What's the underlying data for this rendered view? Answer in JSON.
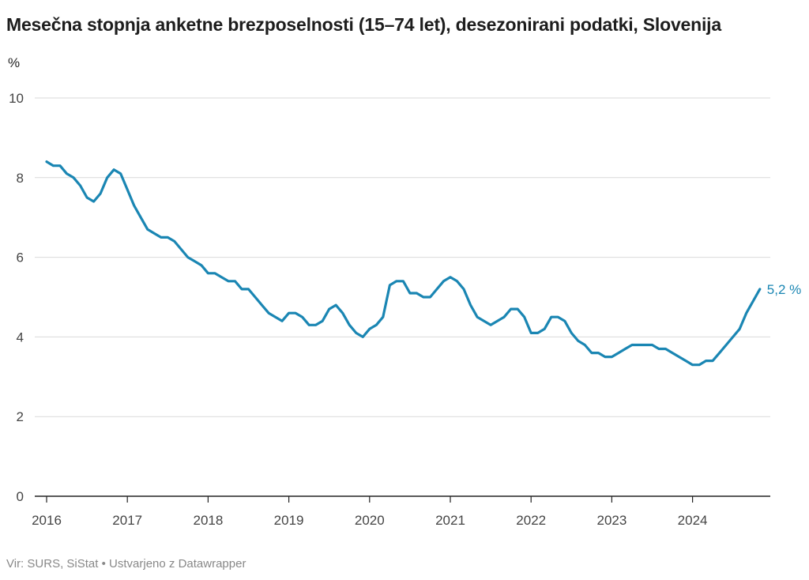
{
  "title": "Mesečna stopnja anketne brezposelnosti (15–74 let), desezonirani podatki, Slovenija",
  "unit_label": "%",
  "footer": {
    "source": "Vir: SURS, SiStat",
    "separator": "•",
    "credit": "Ustvarjeno z Datawrapper"
  },
  "colors": {
    "line": "#1a86b3",
    "grid": "#d9d9d9",
    "axis": "#222222"
  },
  "chart_data": {
    "type": "line",
    "title": "Mesečna stopnja anketne brezposelnosti (15–74 let), desezonirani podatki, Slovenija",
    "xlabel": "",
    "ylabel": "%",
    "ylim": [
      0,
      10
    ],
    "xlim": [
      "2016-01",
      "2024-12"
    ],
    "yticks": [
      0,
      2,
      4,
      6,
      8,
      10
    ],
    "xticks": [
      "2016",
      "2017",
      "2018",
      "2019",
      "2020",
      "2021",
      "2022",
      "2023",
      "2024"
    ],
    "grid": true,
    "end_label": "5,2 %",
    "x": [
      "2016-01",
      "2016-02",
      "2016-03",
      "2016-04",
      "2016-05",
      "2016-06",
      "2016-07",
      "2016-08",
      "2016-09",
      "2016-10",
      "2016-11",
      "2016-12",
      "2017-01",
      "2017-02",
      "2017-03",
      "2017-04",
      "2017-05",
      "2017-06",
      "2017-07",
      "2017-08",
      "2017-09",
      "2017-10",
      "2017-11",
      "2017-12",
      "2018-01",
      "2018-02",
      "2018-03",
      "2018-04",
      "2018-05",
      "2018-06",
      "2018-07",
      "2018-08",
      "2018-09",
      "2018-10",
      "2018-11",
      "2018-12",
      "2019-01",
      "2019-02",
      "2019-03",
      "2019-04",
      "2019-05",
      "2019-06",
      "2019-07",
      "2019-08",
      "2019-09",
      "2019-10",
      "2019-11",
      "2019-12",
      "2020-01",
      "2020-02",
      "2020-03",
      "2020-04",
      "2020-05",
      "2020-06",
      "2020-07",
      "2020-08",
      "2020-09",
      "2020-10",
      "2020-11",
      "2020-12",
      "2021-01",
      "2021-02",
      "2021-03",
      "2021-04",
      "2021-05",
      "2021-06",
      "2021-07",
      "2021-08",
      "2021-09",
      "2021-10",
      "2021-11",
      "2021-12",
      "2022-01",
      "2022-02",
      "2022-03",
      "2022-04",
      "2022-05",
      "2022-06",
      "2022-07",
      "2022-08",
      "2022-09",
      "2022-10",
      "2022-11",
      "2022-12",
      "2023-01",
      "2023-02",
      "2023-03",
      "2023-04",
      "2023-05",
      "2023-06",
      "2023-07",
      "2023-08",
      "2023-09",
      "2023-10",
      "2023-11",
      "2023-12",
      "2024-01",
      "2024-02",
      "2024-03",
      "2024-04",
      "2024-05",
      "2024-06",
      "2024-07",
      "2024-08",
      "2024-09",
      "2024-10",
      "2024-11"
    ],
    "values": [
      8.4,
      8.3,
      8.3,
      8.1,
      8.0,
      7.8,
      7.5,
      7.4,
      7.6,
      8.0,
      8.2,
      8.1,
      7.7,
      7.3,
      7.0,
      6.7,
      6.6,
      6.5,
      6.5,
      6.4,
      6.2,
      6.0,
      5.9,
      5.8,
      5.6,
      5.6,
      5.5,
      5.4,
      5.4,
      5.2,
      5.2,
      5.0,
      4.8,
      4.6,
      4.5,
      4.4,
      4.6,
      4.6,
      4.5,
      4.3,
      4.3,
      4.4,
      4.7,
      4.8,
      4.6,
      4.3,
      4.1,
      4.0,
      4.2,
      4.3,
      4.5,
      5.3,
      5.4,
      5.4,
      5.1,
      5.1,
      5.0,
      5.0,
      5.2,
      5.4,
      5.5,
      5.4,
      5.2,
      4.8,
      4.5,
      4.4,
      4.3,
      4.4,
      4.5,
      4.7,
      4.7,
      4.5,
      4.1,
      4.1,
      4.2,
      4.5,
      4.5,
      4.4,
      4.1,
      3.9,
      3.8,
      3.6,
      3.6,
      3.5,
      3.5,
      3.6,
      3.7,
      3.8,
      3.8,
      3.8,
      3.8,
      3.7,
      3.7,
      3.6,
      3.5,
      3.4,
      3.3,
      3.3,
      3.4,
      3.4,
      3.6,
      3.8,
      4.0,
      4.2,
      4.6,
      4.9,
      5.2
    ]
  }
}
